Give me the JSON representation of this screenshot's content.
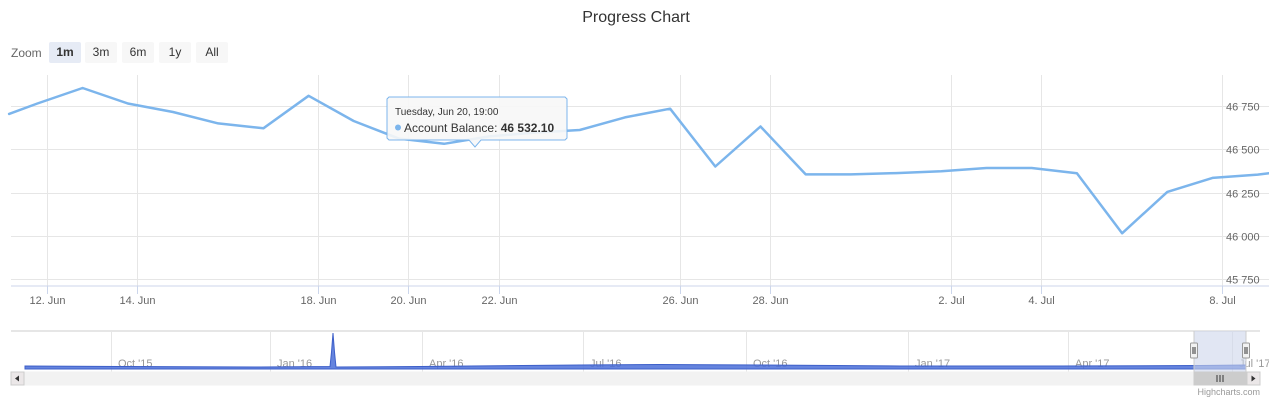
{
  "title": "Progress Chart",
  "zoom": {
    "label": "Zoom",
    "buttons": [
      "1m",
      "3m",
      "6m",
      "1y",
      "All"
    ],
    "selected": "1m"
  },
  "tooltip": {
    "date": "Tuesday, Jun 20, 19:00",
    "series": "Account Balance",
    "value": "46 532.10"
  },
  "navigator": {
    "labels": [
      "Oct '15",
      "Jan '16",
      "Apr '16",
      "Jul '16",
      "Oct '16",
      "Jan '17",
      "Apr '17",
      "Jul '17"
    ]
  },
  "credits": "Highcharts.com",
  "colors": {
    "series": "#7cb5ec",
    "navigator_fill": "#4a6fd8",
    "mask": "#cdd5eb",
    "selected_button": "#e6ebf5"
  },
  "chart_data": {
    "type": "line",
    "title": "Progress Chart",
    "xlabel": "",
    "ylabel": "",
    "x_tick_labels": [
      "12. Jun",
      "14. Jun",
      "18. Jun",
      "20. Jun",
      "22. Jun",
      "26. Jun",
      "28. Jun",
      "2. Jul",
      "4. Jul",
      "8. Jul"
    ],
    "y_tick_labels": [
      "45 750",
      "46 000",
      "46 250",
      "46 500",
      "46 750"
    ],
    "y_ticks": [
      45750,
      46000,
      46250,
      46500,
      46750
    ],
    "ylim": [
      45710,
      46930
    ],
    "xlim": [
      "2017-06-11T05:00",
      "2017-07-09T01:00"
    ],
    "grid": true,
    "legend": "none",
    "series": [
      {
        "name": "Account Balance",
        "x": [
          "2017-06-11T04:00",
          "2017-06-11T19:00",
          "2017-06-12T19:00",
          "2017-06-13T19:00",
          "2017-06-14T19:00",
          "2017-06-15T19:00",
          "2017-06-16T19:00",
          "2017-06-17T19:00",
          "2017-06-18T19:00",
          "2017-06-19T19:00",
          "2017-06-20T19:00",
          "2017-06-21T19:00",
          "2017-06-22T19:00",
          "2017-06-23T19:00",
          "2017-06-24T19:00",
          "2017-06-25T19:00",
          "2017-06-26T19:00",
          "2017-06-27T19:00",
          "2017-06-28T19:00",
          "2017-06-29T19:00",
          "2017-06-30T19:00",
          "2017-07-01T19:00",
          "2017-07-02T19:00",
          "2017-07-03T19:00",
          "2017-07-04T19:00",
          "2017-07-05T19:00",
          "2017-07-06T19:00",
          "2017-07-07T19:00",
          "2017-07-08T19:00",
          "2017-07-09T01:00"
        ],
        "y": [
          46705,
          46765,
          46855,
          46765,
          46716,
          46650,
          46622,
          46810,
          46664,
          46562,
          46532,
          46575,
          46597,
          46612,
          46685,
          46735,
          46401,
          46632,
          46355,
          46355,
          46363,
          46373,
          46392,
          46392,
          46362,
          46015,
          46254,
          46335,
          46354,
          46362
        ]
      }
    ]
  }
}
